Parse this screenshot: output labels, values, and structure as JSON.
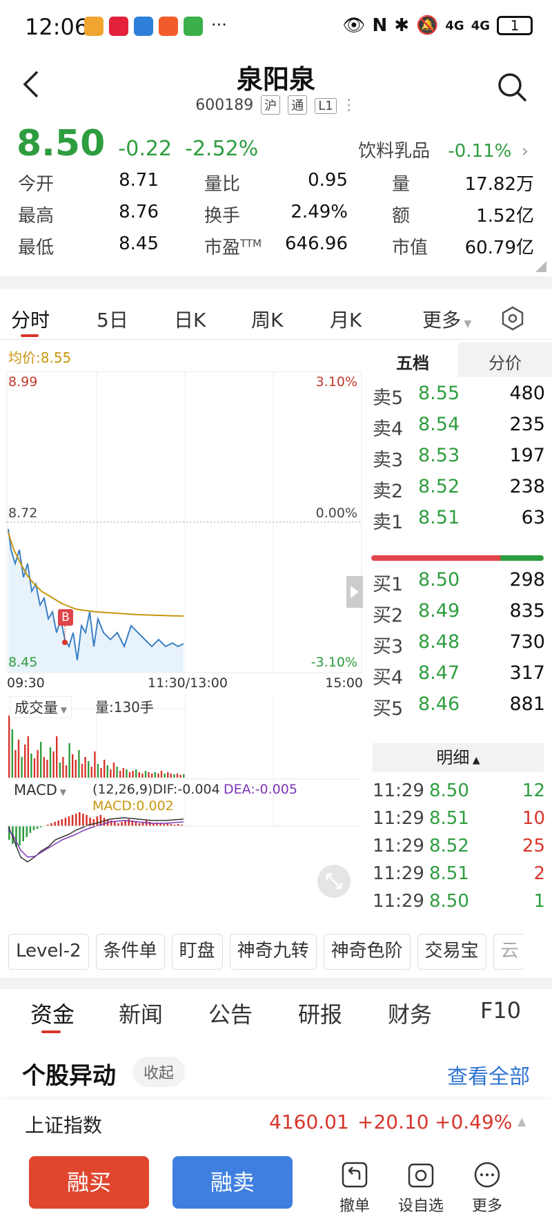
{
  "status": {
    "time": "12:06",
    "more": "···",
    "signal1": "4G",
    "signal2": "4G",
    "battery": "1"
  },
  "header": {
    "title": "泉阳泉",
    "code": "600189",
    "tags": [
      "沪",
      "通",
      "L1"
    ]
  },
  "quote": {
    "price": "8.50",
    "change": "-0.22",
    "change_pct": "-2.52%",
    "sector_name": "饮料乳品",
    "sector_chg": "-0.11%"
  },
  "stats": {
    "open_label": "今开",
    "open": "8.71",
    "high_label": "最高",
    "high": "8.76",
    "low_label": "最低",
    "low": "8.45",
    "volratio_label": "量比",
    "volratio": "0.95",
    "turnover_label": "换手",
    "turnover": "2.49%",
    "pe_label": "市盈",
    "pe_sup": "TTM",
    "pe": "646.96",
    "vol_label": "量",
    "vol": "17.82万",
    "amount_label": "额",
    "amount": "1.52亿",
    "mcap_label": "市值",
    "mcap": "60.79亿"
  },
  "tabs": [
    "分时",
    "5日",
    "日K",
    "周K",
    "月K",
    "更多"
  ],
  "chart": {
    "avg_label": "均价:8.55",
    "y_high": "8.99",
    "y_mid": "8.72",
    "y_low": "8.45",
    "pct_high": "3.10%",
    "pct_mid": "0.00%",
    "pct_low": "-3.10%",
    "t_start": "09:30",
    "t_mid": "11:30/13:00",
    "t_end": "15:00",
    "vol_title": "成交量",
    "vol_value": "量:130手",
    "macd_title": "MACD",
    "macd_params": "(12,26,9)DIF:-0.004",
    "macd_dea": "DEA:-0.005",
    "macd_val": "MACD:0.002",
    "marker": "B"
  },
  "orderbook": {
    "tab_active": "五档",
    "tab_other": "分价",
    "asks": [
      {
        "label": "卖5",
        "price": "8.55",
        "vol": "480"
      },
      {
        "label": "卖4",
        "price": "8.54",
        "vol": "235"
      },
      {
        "label": "卖3",
        "price": "8.53",
        "vol": "197"
      },
      {
        "label": "卖2",
        "price": "8.52",
        "vol": "238"
      },
      {
        "label": "卖1",
        "price": "8.51",
        "vol": "63"
      }
    ],
    "bids": [
      {
        "label": "买1",
        "price": "8.50",
        "vol": "298"
      },
      {
        "label": "买2",
        "price": "8.49",
        "vol": "835"
      },
      {
        "label": "买3",
        "price": "8.48",
        "vol": "730"
      },
      {
        "label": "买4",
        "price": "8.47",
        "vol": "317"
      },
      {
        "label": "买5",
        "price": "8.46",
        "vol": "881"
      }
    ],
    "detail_label": "明细",
    "ticks": [
      {
        "time": "11:29",
        "price": "8.50",
        "vol": "12",
        "dir": "green"
      },
      {
        "time": "11:29",
        "price": "8.51",
        "vol": "10",
        "dir": "red"
      },
      {
        "time": "11:29",
        "price": "8.52",
        "vol": "25",
        "dir": "red"
      },
      {
        "time": "11:29",
        "price": "8.51",
        "vol": "2",
        "dir": "red"
      },
      {
        "time": "11:29",
        "price": "8.50",
        "vol": "1",
        "dir": "green"
      }
    ]
  },
  "tools": [
    "Level-2",
    "条件单",
    "盯盘",
    "神奇九转",
    "神奇色阶",
    "交易宝",
    "云"
  ],
  "subtabs": [
    "资金",
    "新闻",
    "公告",
    "研报",
    "财务",
    "F10"
  ],
  "section": {
    "title": "个股异动",
    "collapse": "收起",
    "view_all": "查看全部"
  },
  "index": {
    "name": "上证指数",
    "value": "4160.01",
    "change": "+20.10",
    "pct": "+0.49%"
  },
  "bottom": {
    "buy": "融买",
    "sell": "融卖",
    "cancel": "撤单",
    "watch": "设自选",
    "more": "更多"
  },
  "colors": {
    "up": "#d8352b",
    "down": "#2e9d3f",
    "avg_line": "#c8960c",
    "price_line": "#3b7fc4",
    "link": "#2f74d0"
  }
}
